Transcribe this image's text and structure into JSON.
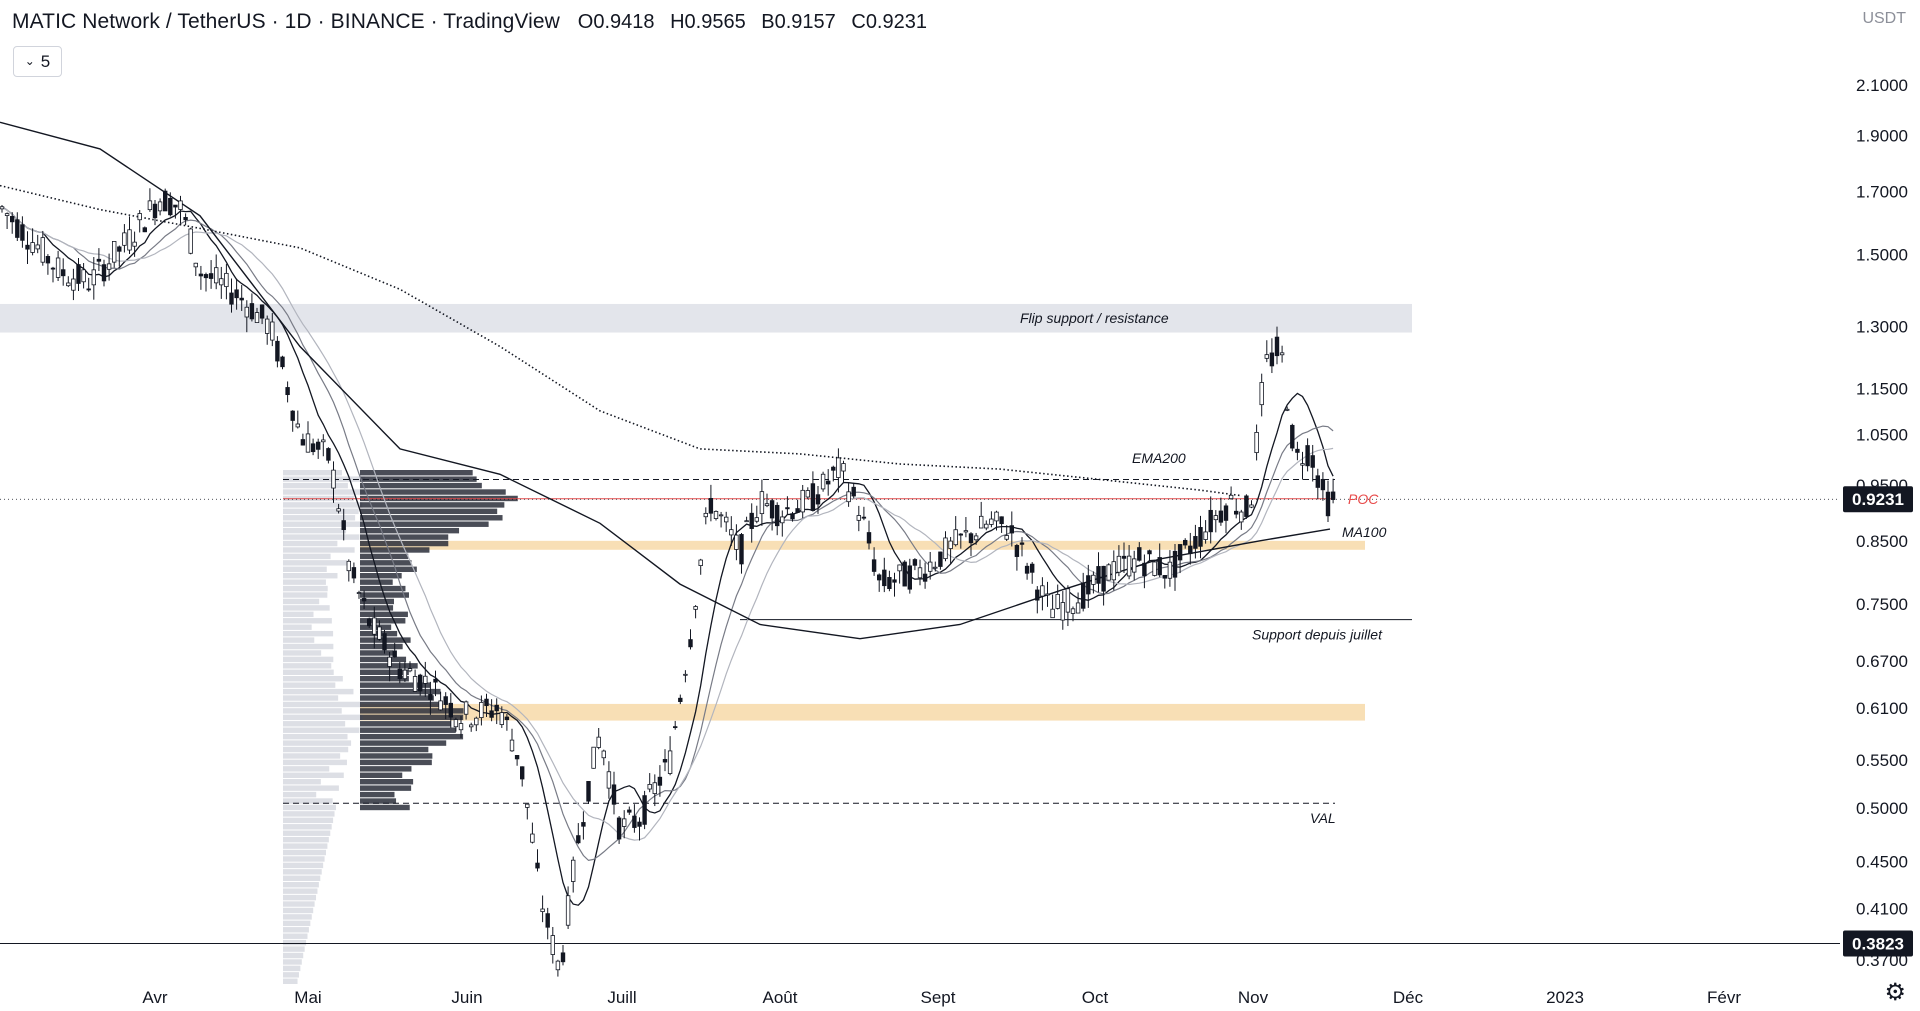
{
  "header": {
    "title": "MATIC Network / TetherUS · 1D · BINANCE · TradingView",
    "ohlc": [
      {
        "key": "O",
        "value": "0.9418"
      },
      {
        "key": "H",
        "value": "0.9565"
      },
      {
        "key": "B",
        "value": "0.9157"
      },
      {
        "key": "C",
        "value": "0.9231"
      }
    ],
    "collapse_label": "5"
  },
  "currency": "USDT",
  "icons": {
    "settings": "gear-icon",
    "collapse": "chevron-down-icon"
  },
  "colors": {
    "highlight_band": "#f7d9a8",
    "resistance_band": "#e2e4ea",
    "poc": "#e84a4a",
    "candle": "#131722"
  },
  "chart_data": {
    "type": "candlestick",
    "scale": "log",
    "ylim": [
      0.34,
      2.3
    ],
    "x_labels": [
      "Avr",
      "Mai",
      "Juin",
      "Juill",
      "Août",
      "Sept",
      "Oct",
      "Nov",
      "Déc",
      "2023",
      "Févr"
    ],
    "y_ticks": [
      "2.1000",
      "1.9000",
      "1.7000",
      "1.5000",
      "1.3000",
      "1.1500",
      "1.0500",
      "0.9500",
      "0.8500",
      "0.7500",
      "0.6700",
      "0.6100",
      "0.5500",
      "0.5000",
      "0.4500",
      "0.4100",
      "0.3700"
    ],
    "y_tick_values": [
      2.1,
      1.9,
      1.7,
      1.5,
      1.3,
      1.15,
      1.05,
      0.95,
      0.85,
      0.75,
      0.67,
      0.61,
      0.55,
      0.5,
      0.45,
      0.41,
      0.37
    ],
    "price_labels": [
      {
        "text": "0.9231",
        "value": 0.9231
      },
      {
        "text": "0.3823",
        "value": 0.3823
      }
    ],
    "zones": [
      {
        "label": "Flip support / resistance",
        "low": 1.285,
        "high": 1.36
      },
      {
        "label": "",
        "low": 0.835,
        "high": 0.85
      },
      {
        "label": "",
        "low": 0.595,
        "high": 0.615
      }
    ],
    "levels": [
      {
        "label": "Support depuis juillet",
        "value": 0.727
      },
      {
        "label": "VAL",
        "value": 0.505
      },
      {
        "label": "",
        "value": 0.96
      },
      {
        "label": "POC",
        "value": 0.924
      }
    ],
    "annotations": [
      "EMA200",
      "MA100",
      "POC",
      "VAL",
      "Flip support / resistance",
      "Support depuis juillet"
    ],
    "series": [
      {
        "name": "EMA200",
        "style": "dotted"
      },
      {
        "name": "MA100",
        "style": "solid"
      }
    ]
  }
}
